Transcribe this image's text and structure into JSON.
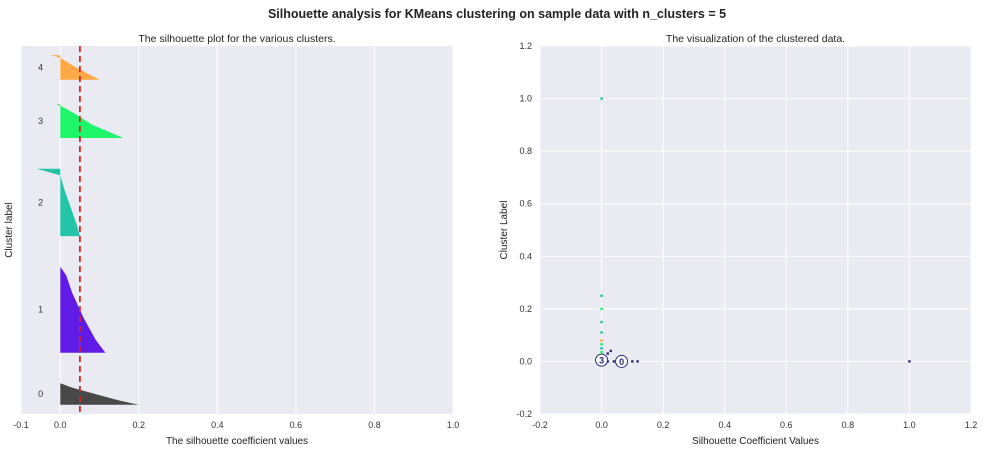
{
  "figure": {
    "suptitle": "Silhouette analysis for KMeans clustering on sample data with n_clusters = 5"
  },
  "chart_data": [
    {
      "type": "area",
      "title": "The silhouette plot for the various clusters.",
      "xlabel": "The silhouette coefficient values",
      "ylabel": "Cluster label",
      "xlim": [
        -0.1,
        1.0
      ],
      "xticks": [
        "-0.1",
        "0.0",
        "0.2",
        "0.4",
        "0.6",
        "0.8",
        "1.0"
      ],
      "xtick_values": [
        -0.1,
        0.0,
        0.2,
        0.4,
        0.6,
        0.8,
        1.0
      ],
      "grid": true,
      "average_silhouette_score": 0.05,
      "average_line_color": "#e3231c",
      "clusters": [
        {
          "label": "0",
          "color": "#3f3f3f",
          "y_span": [
            3,
            10
          ],
          "profile": [
            [
              0,
              0.2
            ],
            [
              0.2,
              0.15
            ],
            [
              0.5,
              0.09
            ],
            [
              0.8,
              0.03
            ],
            [
              1,
              0.0
            ]
          ]
        },
        {
          "label": "1",
          "color": "#5a10e6",
          "y_span": [
            20,
            48
          ],
          "profile": [
            [
              0,
              0.115
            ],
            [
              0.15,
              0.09
            ],
            [
              0.4,
              0.06
            ],
            [
              0.7,
              0.03
            ],
            [
              0.9,
              0.015
            ],
            [
              1,
              0.0
            ]
          ]
        },
        {
          "label": "2",
          "color": "#19c2a3",
          "y_span": [
            58,
            80
          ],
          "profile": [
            [
              0,
              0.05
            ],
            [
              0.2,
              0.04
            ],
            [
              0.45,
              0.025
            ],
            [
              0.7,
              0.01
            ],
            [
              0.9,
              0.0
            ],
            [
              0.95,
              -0.03
            ],
            [
              1,
              -0.06
            ]
          ]
        },
        {
          "label": "3",
          "color": "#14f563",
          "y_span": [
            90,
            101
          ],
          "profile": [
            [
              0,
              0.16
            ],
            [
              0.15,
              0.13
            ],
            [
              0.4,
              0.08
            ],
            [
              0.7,
              0.04
            ],
            [
              0.9,
              0.01
            ],
            [
              1,
              -0.01
            ]
          ]
        },
        {
          "label": "4",
          "color": "#ffa53b",
          "y_span": [
            109,
            117
          ],
          "profile": [
            [
              0,
              0.1
            ],
            [
              0.25,
              0.07
            ],
            [
              0.55,
              0.035
            ],
            [
              0.8,
              0.01
            ],
            [
              0.95,
              -0.01
            ],
            [
              1,
              -0.03
            ]
          ]
        }
      ],
      "ylim": [
        0,
        120
      ]
    },
    {
      "type": "scatter",
      "title": "The visualization of the clustered data.",
      "xlabel": "Silhouette Coefficient Values",
      "ylabel": "Cluster Label",
      "xlim": [
        -0.2,
        1.2
      ],
      "ylim": [
        -0.2,
        1.2
      ],
      "xticks": [
        "-0.2",
        "0.0",
        "0.2",
        "0.4",
        "0.6",
        "0.8",
        "1.0",
        "1.2"
      ],
      "xtick_values": [
        -0.2,
        0.0,
        0.2,
        0.4,
        0.6,
        0.8,
        1.0,
        1.2
      ],
      "yticks": [
        "-0.2",
        "0.0",
        "0.2",
        "0.4",
        "0.6",
        "0.8",
        "1.0",
        "1.2"
      ],
      "ytick_values": [
        -0.2,
        0.0,
        0.2,
        0.4,
        0.6,
        0.8,
        1.0,
        1.2
      ],
      "grid": true,
      "points": [
        {
          "x": 0.0,
          "y": 1.0,
          "color": "#19c2a3"
        },
        {
          "x": 0.0,
          "y": 0.25,
          "color": "#19c2a3"
        },
        {
          "x": 0.0,
          "y": 0.2,
          "color": "#14f563"
        },
        {
          "x": 0.0,
          "y": 0.15,
          "color": "#19c2a3"
        },
        {
          "x": 0.0,
          "y": 0.11,
          "color": "#19c2a3"
        },
        {
          "x": 0.0,
          "y": 0.08,
          "color": "#ffa53b"
        },
        {
          "x": 0.0,
          "y": 0.065,
          "color": "#14f563"
        },
        {
          "x": 0.0,
          "y": 0.05,
          "color": "#19c2a3"
        },
        {
          "x": 0.0,
          "y": 0.035,
          "color": "#14f563"
        },
        {
          "x": 0.0,
          "y": 0.02,
          "color": "#5a10e6"
        },
        {
          "x": 0.02,
          "y": 0.03,
          "color": "#2a2a7a"
        },
        {
          "x": 0.03,
          "y": 0.04,
          "color": "#2a2a7a"
        },
        {
          "x": 0.02,
          "y": 0.0,
          "color": "#2a2a7a"
        },
        {
          "x": 0.04,
          "y": 0.0,
          "color": "#2a2a7a"
        },
        {
          "x": 0.05,
          "y": 0.0,
          "color": "#2a2a7a"
        },
        {
          "x": 0.1,
          "y": 0.0,
          "color": "#2a2a7a"
        },
        {
          "x": 0.117,
          "y": 0.0,
          "color": "#2a2a7a"
        },
        {
          "x": 1.0,
          "y": 0.0,
          "color": "#2a2a7a"
        }
      ],
      "centers": [
        {
          "label": "3",
          "x": 0.0,
          "y": 0.005
        },
        {
          "label": "0",
          "x": 0.065,
          "y": 0.0
        }
      ]
    }
  ]
}
